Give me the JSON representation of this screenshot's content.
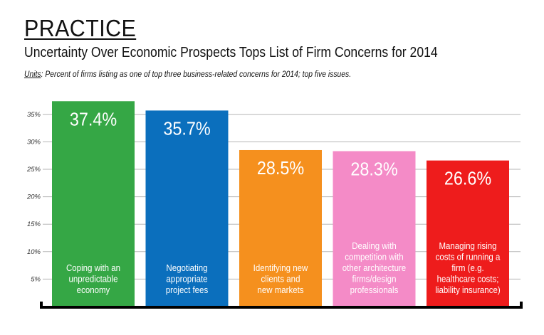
{
  "header": {
    "section_label": "PRACTICE",
    "title": "Uncertainty Over Economic Prospects Tops List of Firm Concerns for 2014",
    "units_key": "Units",
    "units_text": ": Percent of firms listing as one of top three business-related concerns for 2014; top five issues."
  },
  "chart_data": {
    "type": "bar",
    "title": "Uncertainty Over Economic Prospects Tops List of Firm Concerns for 2014",
    "ylabel": "",
    "xlabel": "",
    "ylim": [
      0,
      37
    ],
    "yticks": [
      5,
      10,
      15,
      20,
      25,
      30,
      35
    ],
    "ytick_labels": [
      "5%",
      "10%",
      "15%",
      "20%",
      "25%",
      "30%",
      "35%"
    ],
    "grid": true,
    "categories": [
      "Coping with an unpredictable economy",
      "Negotiating appropriate project fees",
      "Identifying new clients and new markets",
      "Dealing with competition with other architecture firms/design professionals",
      "Managing rising costs of running a firm (e.g. healthcare costs; liability insurance)"
    ],
    "category_lines": [
      [
        "Coping with an",
        "unpredictable",
        "economy"
      ],
      [
        "Negotiating",
        "appropriate",
        "project fees"
      ],
      [
        "Identifying new",
        "clients and",
        "new markets"
      ],
      [
        "Dealing with",
        "competition with",
        "other architecture",
        "firms/design",
        "professionals"
      ],
      [
        "Managing rising",
        "costs of running a",
        "firm (e.g.",
        "healthcare costs;",
        "liability insurance)"
      ]
    ],
    "values": [
      37.4,
      35.7,
      28.5,
      28.3,
      26.6
    ],
    "value_labels": [
      "37.4%",
      "35.7%",
      "28.5%",
      "28.3%",
      "26.6%"
    ],
    "colors": [
      "#35a745",
      "#0b6fbd",
      "#f5901e",
      "#f48bc7",
      "#ee1c1c"
    ]
  }
}
